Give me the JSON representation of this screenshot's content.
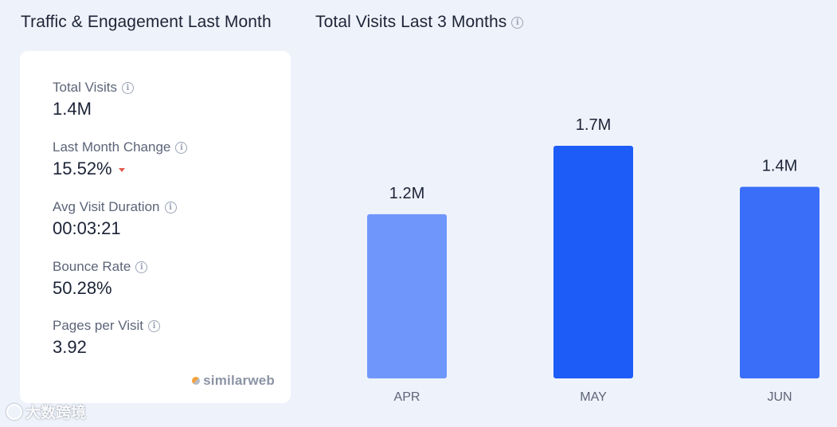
{
  "titles": {
    "traffic": "Traffic & Engagement Last Month",
    "visits": "Total Visits Last 3 Months"
  },
  "metrics": [
    {
      "label": "Total Visits",
      "value": "1.4M"
    },
    {
      "label": "Last Month Change",
      "value": "15.52%"
    },
    {
      "label": "Avg Visit Duration",
      "value": "00:03:21"
    },
    {
      "label": "Bounce Rate",
      "value": "50.28%"
    },
    {
      "label": "Pages per Visit",
      "value": "3.92"
    }
  ],
  "brand": "similarweb",
  "watermark": "大数跨境",
  "chart_data": {
    "type": "bar",
    "categories": [
      "APR",
      "MAY",
      "JUN"
    ],
    "values": [
      1.2,
      1.7,
      1.4
    ],
    "data_labels": [
      "1.2M",
      "1.7M",
      "1.4M"
    ],
    "unit": "M",
    "bar_colors": [
      "#6f97fb",
      "#1d5cf7",
      "#3a6ef9"
    ],
    "ylim": [
      0,
      1.7
    ],
    "grid": false
  },
  "colors": {
    "background": "#eef2fa",
    "card": "#ffffff",
    "change_down": "#e25a4e"
  }
}
